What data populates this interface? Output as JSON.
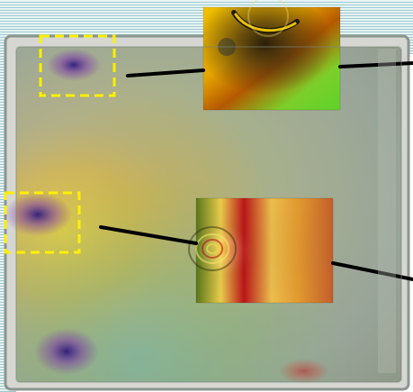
{
  "image": {
    "kind": "photoelasticity stress photograph with magnified insets",
    "background_color": "#ffffff",
    "frame_color": "#9aa39a",
    "plate_base_color": "#a7b08d",
    "highlight_box_color": "#ffef00",
    "leader_line_color": "#000000"
  },
  "regions": [
    {
      "name": "corner-hotspot",
      "inset": "inset-top",
      "dominant_colors": [
        "#ffd200",
        "#d4a300",
        "#2f2a10",
        "#7ccf2a"
      ]
    },
    {
      "name": "edge-notch",
      "inset": "inset-mid",
      "dominant_colors": [
        "#c1161a",
        "#e2b64a",
        "#f1d34f",
        "#5d7c1b"
      ]
    }
  ]
}
